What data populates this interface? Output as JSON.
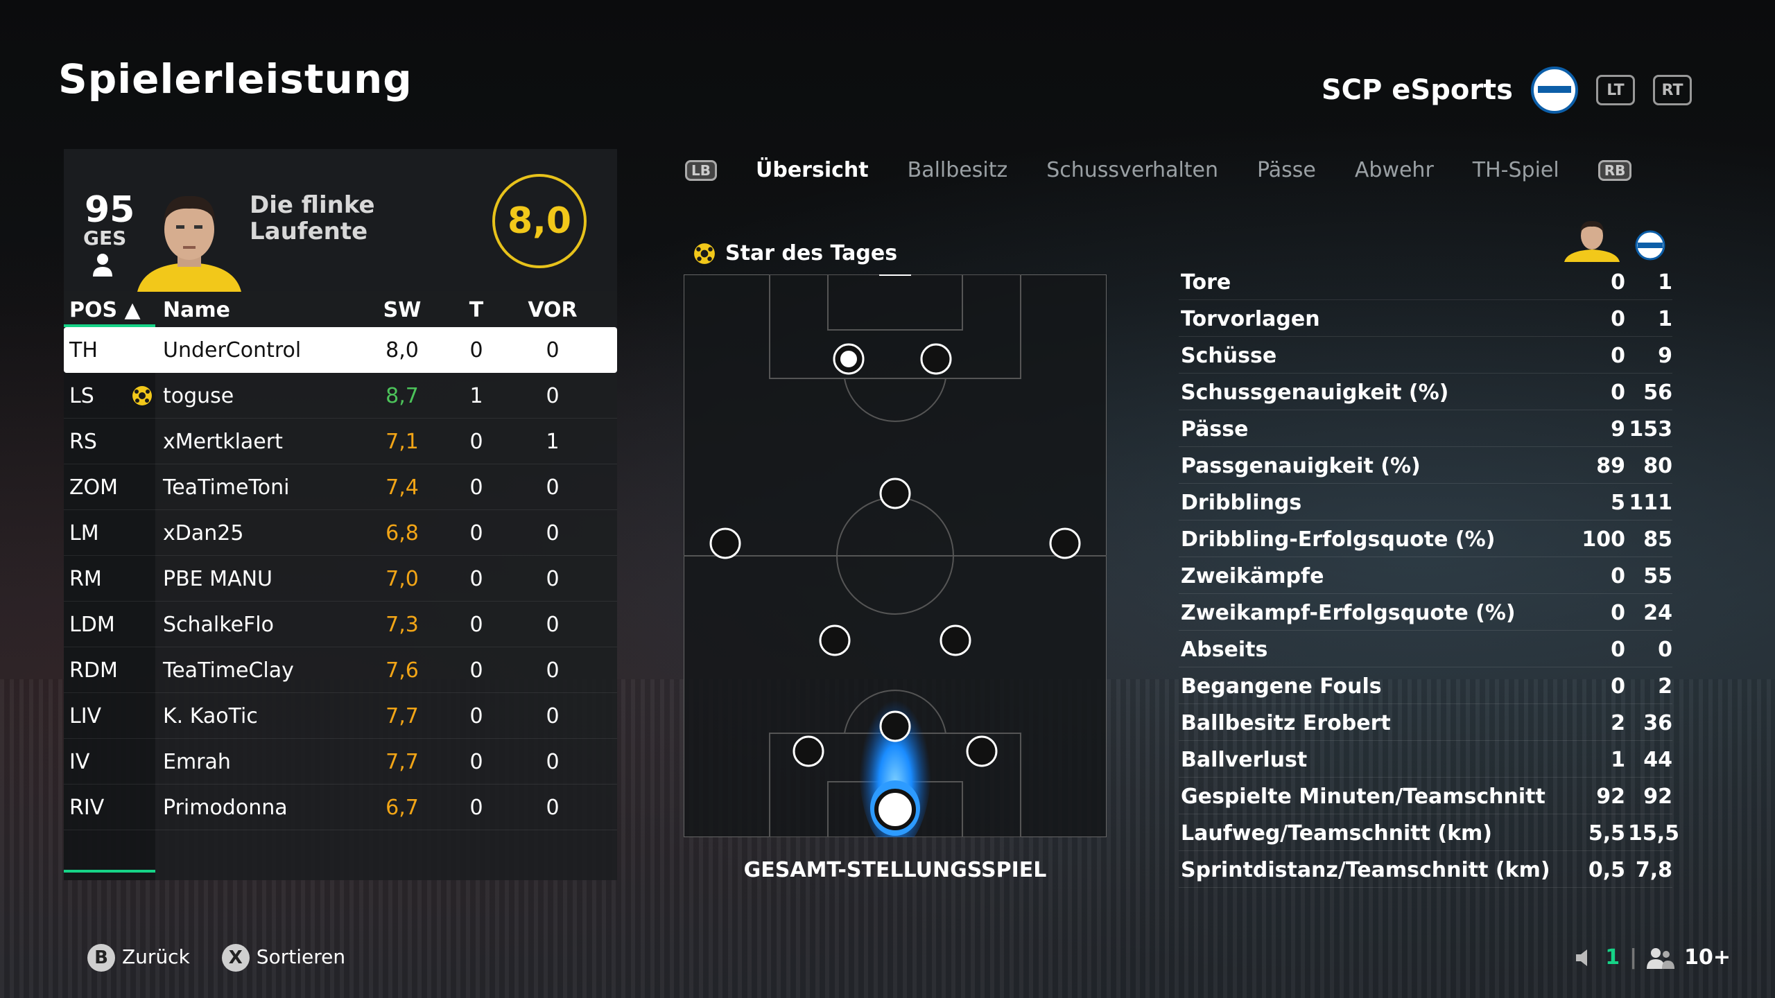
{
  "page": {
    "title": "Spielerleistung"
  },
  "team": {
    "name": "SCP eSports",
    "lt_label": "LT",
    "rt_label": "RT"
  },
  "player": {
    "overall": "95",
    "overall_label": "GES",
    "name": "Die flinke Laufente",
    "rating": "8,0"
  },
  "table": {
    "headers": {
      "pos": "POS ▲",
      "name": "Name",
      "sw": "SW",
      "t": "T",
      "vor": "VOR"
    },
    "rows": [
      {
        "pos": "TH",
        "name": "UnderControl",
        "sw": "8,0",
        "t": "0",
        "vor": "0",
        "selected": true
      },
      {
        "pos": "LS",
        "name": "toguse",
        "sw": "8,7",
        "t": "1",
        "vor": "0",
        "star": true
      },
      {
        "pos": "RS",
        "name": "xMertklaert",
        "sw": "7,1",
        "t": "0",
        "vor": "1"
      },
      {
        "pos": "ZOM",
        "name": "TeaTimeToni",
        "sw": "7,4",
        "t": "0",
        "vor": "0"
      },
      {
        "pos": "LM",
        "name": "xDan25",
        "sw": "6,8",
        "t": "0",
        "vor": "0"
      },
      {
        "pos": "RM",
        "name": "PBE MANU",
        "sw": "7,0",
        "t": "0",
        "vor": "0"
      },
      {
        "pos": "LDM",
        "name": "SchalkeFlo",
        "sw": "7,3",
        "t": "0",
        "vor": "0"
      },
      {
        "pos": "RDM",
        "name": "TeaTimeClay",
        "sw": "7,6",
        "t": "0",
        "vor": "0"
      },
      {
        "pos": "LIV",
        "name": "K. KaoTic",
        "sw": "7,7",
        "t": "0",
        "vor": "0"
      },
      {
        "pos": "IV",
        "name": "Emrah",
        "sw": "7,7",
        "t": "0",
        "vor": "0"
      },
      {
        "pos": "RIV",
        "name": "Primodonna",
        "sw": "6,7",
        "t": "0",
        "vor": "0"
      }
    ]
  },
  "tabs": {
    "lb_label": "LB",
    "rb_label": "RB",
    "items": [
      "Übersicht",
      "Ballbesitz",
      "Schussverhalten",
      "Pässe",
      "Abwehr",
      "TH-Spiel"
    ],
    "active": "Übersicht"
  },
  "pitch": {
    "star_label": "Star des Tages",
    "caption": "GESAMT-STELLUNGSSPIEL"
  },
  "stats": [
    {
      "label": "Tore",
      "player": "0",
      "team": "1"
    },
    {
      "label": "Torvorlagen",
      "player": "0",
      "team": "1"
    },
    {
      "label": "Schüsse",
      "player": "0",
      "team": "9"
    },
    {
      "label": "Schussgenauigkeit (%)",
      "player": "0",
      "team": "56"
    },
    {
      "label": "Pässe",
      "player": "9",
      "team": "153"
    },
    {
      "label": "Passgenauigkeit (%)",
      "player": "89",
      "team": "80"
    },
    {
      "label": "Dribblings",
      "player": "5",
      "team": "111"
    },
    {
      "label": "Dribbling-Erfolgsquote (%)",
      "player": "100",
      "team": "85"
    },
    {
      "label": "Zweikämpfe",
      "player": "0",
      "team": "55"
    },
    {
      "label": "Zweikampf-Erfolgsquote (%)",
      "player": "0",
      "team": "24"
    },
    {
      "label": "Abseits",
      "player": "0",
      "team": "0"
    },
    {
      "label": "Begangene Fouls",
      "player": "0",
      "team": "2"
    },
    {
      "label": "Ballbesitz Erobert",
      "player": "2",
      "team": "36"
    },
    {
      "label": "Ballverlust",
      "player": "1",
      "team": "44"
    },
    {
      "label": "Gespielte Minuten/Teamschnitt",
      "player": "92",
      "team": "92"
    },
    {
      "label": "Laufweg/Teamschnitt (km)",
      "player": "5,5",
      "team": "15,5"
    },
    {
      "label": "Sprintdistanz/Teamschnitt (km)",
      "player": "0,5",
      "team": "7,8"
    }
  ],
  "footer": {
    "back_btn": "B",
    "back_label": "Zurück",
    "sort_btn": "X",
    "sort_label": "Sortieren",
    "mic_count": "1",
    "party_count": "10+"
  },
  "colors": {
    "accent": "#16d387",
    "rating": "#f2c81a",
    "green_value": "#4cc35a",
    "orange_value": "#f2a516"
  }
}
